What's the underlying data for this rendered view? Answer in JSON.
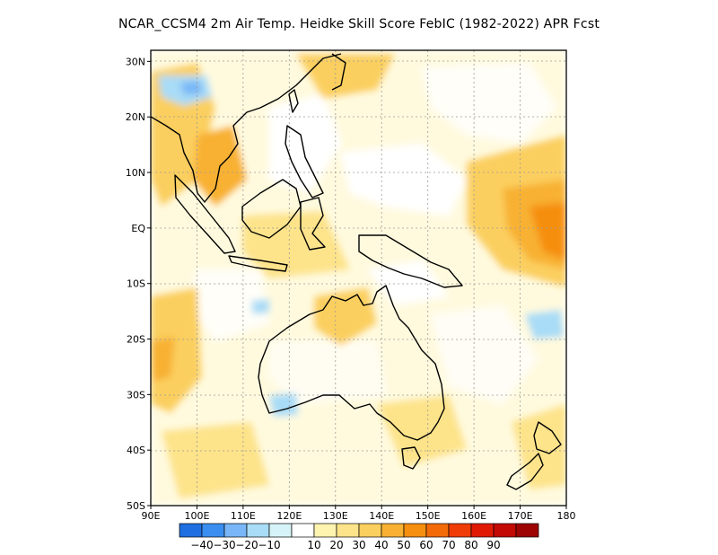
{
  "title": "NCAR_CCSM4  2m Air Temp. Heidke Skill Score FebIC (1982-2022) APR Fcst",
  "map": {
    "projection": "lat-lon",
    "lon_range": [
      90,
      180
    ],
    "lat_range": [
      -50,
      32
    ],
    "lon_ticks": [
      "90E",
      "100E",
      "110E",
      "120E",
      "130E",
      "140E",
      "150E",
      "160E",
      "170E",
      "180"
    ],
    "lat_ticks": [
      "30N",
      "20N",
      "10N",
      "EQ",
      "10S",
      "20S",
      "30S",
      "40S",
      "50S"
    ],
    "gridlines": "dotted"
  },
  "colorbar": {
    "colors": [
      "#1e6fe0",
      "#3a8ef0",
      "#78b6f7",
      "#a9dcf6",
      "#d6f3f8",
      "#ffffff",
      "#fff3b0",
      "#fde38a",
      "#fbcf5e",
      "#f8b133",
      "#f68e10",
      "#f36a08",
      "#f03c06",
      "#e01a05",
      "#c30a05",
      "#9e0404"
    ],
    "labels": [
      "-40",
      "-30",
      "-20",
      "-10",
      "10",
      "20",
      "30",
      "40",
      "50",
      "60",
      "70",
      "80",
      "90"
    ]
  }
}
